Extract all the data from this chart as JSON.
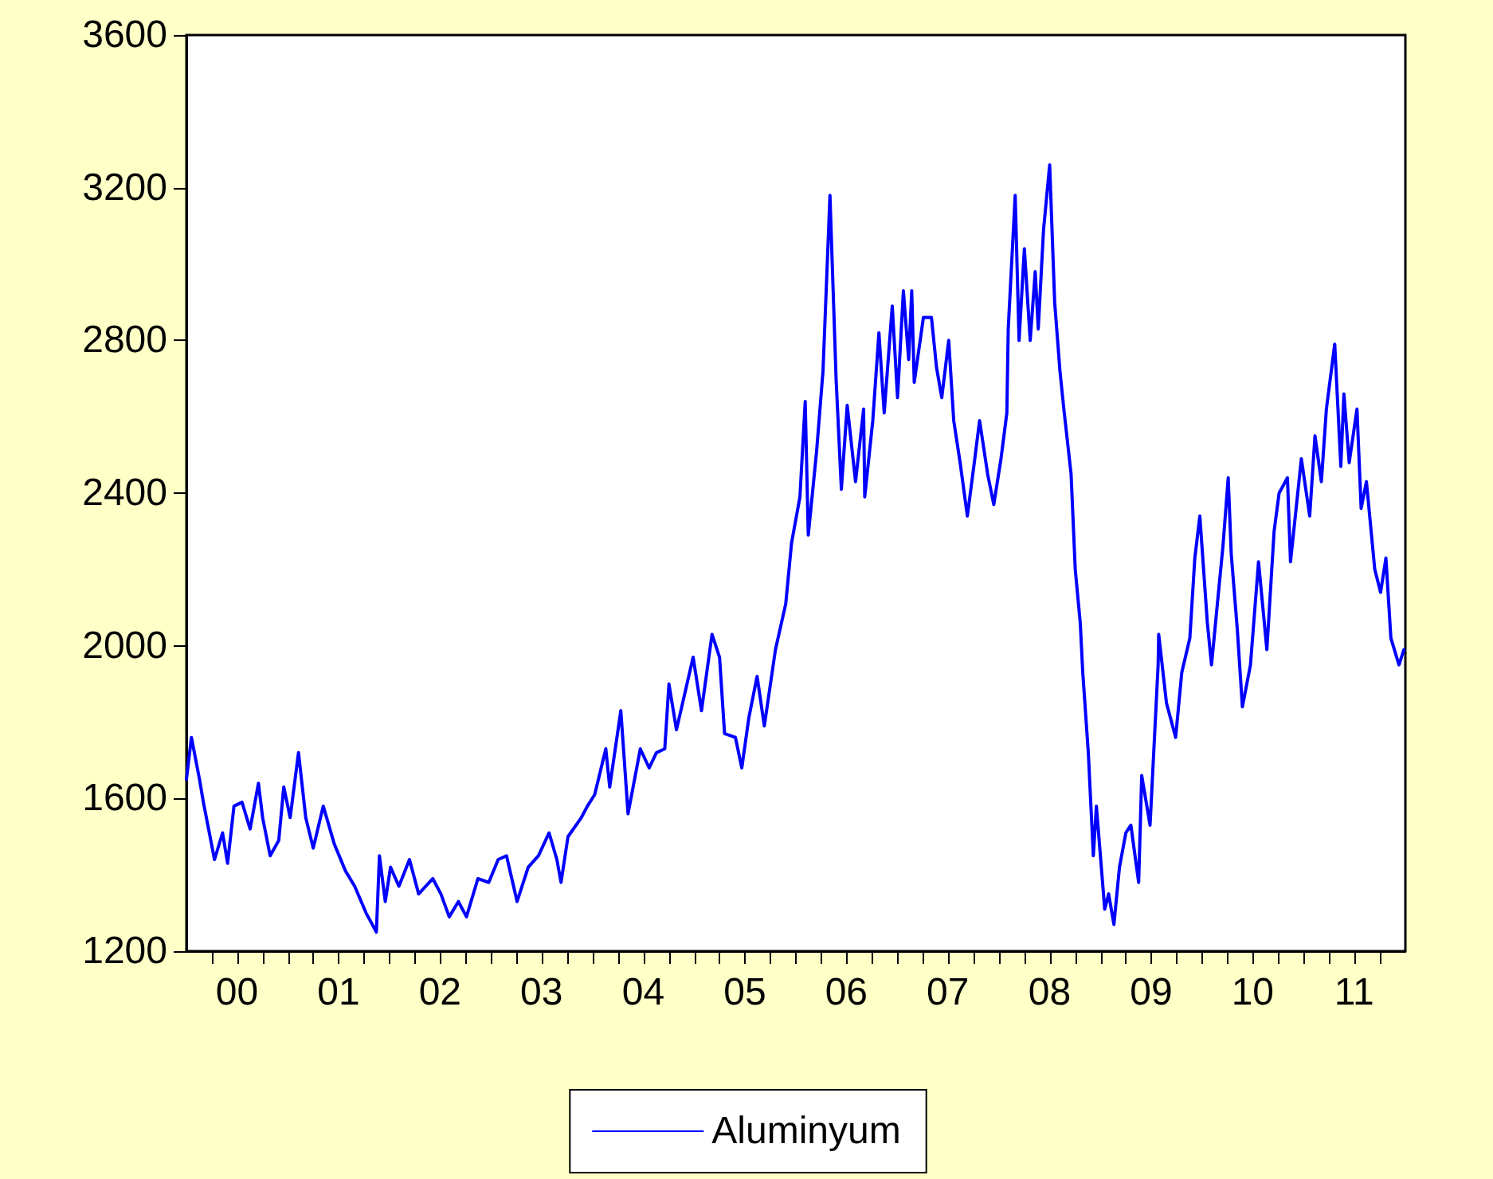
{
  "chart_data": {
    "type": "line",
    "legend": "bottom",
    "grid": false,
    "marker": "none",
    "line_style": "solid",
    "ylim": [
      1200,
      3600
    ],
    "yticks": [
      1200,
      1600,
      2000,
      2400,
      2800,
      3200,
      3600
    ],
    "xlim": [
      "2000-01-01",
      "2012-01-01"
    ],
    "xticks": [
      {
        "value": "2000-04-01",
        "label": null
      },
      {
        "value": "2000-07-01",
        "label": "00"
      },
      {
        "value": "2000-10-01",
        "label": null
      },
      {
        "value": "2001-01-01",
        "label": null
      },
      {
        "value": "2001-04-01",
        "label": null
      },
      {
        "value": "2001-07-01",
        "label": "01"
      },
      {
        "value": "2001-10-01",
        "label": null
      },
      {
        "value": "2002-01-01",
        "label": null
      },
      {
        "value": "2002-04-01",
        "label": null
      },
      {
        "value": "2002-07-01",
        "label": "02"
      },
      {
        "value": "2002-10-01",
        "label": null
      },
      {
        "value": "2003-01-01",
        "label": null
      },
      {
        "value": "2003-04-01",
        "label": null
      },
      {
        "value": "2003-07-01",
        "label": "03"
      },
      {
        "value": "2003-10-01",
        "label": null
      },
      {
        "value": "2004-01-01",
        "label": null
      },
      {
        "value": "2004-04-01",
        "label": null
      },
      {
        "value": "2004-07-01",
        "label": "04"
      },
      {
        "value": "2004-10-01",
        "label": null
      },
      {
        "value": "2005-01-01",
        "label": null
      },
      {
        "value": "2005-04-01",
        "label": null
      },
      {
        "value": "2005-07-01",
        "label": "05"
      },
      {
        "value": "2005-10-01",
        "label": null
      },
      {
        "value": "2006-01-01",
        "label": null
      },
      {
        "value": "2006-04-01",
        "label": null
      },
      {
        "value": "2006-07-01",
        "label": "06"
      },
      {
        "value": "2006-10-01",
        "label": null
      },
      {
        "value": "2007-01-01",
        "label": null
      },
      {
        "value": "2007-04-01",
        "label": null
      },
      {
        "value": "2007-07-01",
        "label": "07"
      },
      {
        "value": "2007-10-01",
        "label": null
      },
      {
        "value": "2008-01-01",
        "label": null
      },
      {
        "value": "2008-04-01",
        "label": null
      },
      {
        "value": "2008-07-01",
        "label": "08"
      },
      {
        "value": "2008-10-01",
        "label": null
      },
      {
        "value": "2009-01-01",
        "label": null
      },
      {
        "value": "2009-04-01",
        "label": null
      },
      {
        "value": "2009-07-01",
        "label": "09"
      },
      {
        "value": "2009-10-01",
        "label": null
      },
      {
        "value": "2010-01-01",
        "label": null
      },
      {
        "value": "2010-04-01",
        "label": null
      },
      {
        "value": "2010-07-01",
        "label": "10"
      },
      {
        "value": "2010-10-01",
        "label": null
      },
      {
        "value": "2011-01-01",
        "label": null
      },
      {
        "value": "2011-04-01",
        "label": null
      },
      {
        "value": "2011-07-01",
        "label": "11"
      },
      {
        "value": "2011-10-01",
        "label": null
      }
    ],
    "series": [
      {
        "name": "Aluminyum",
        "color": "#0000ff",
        "x": [
          "2000-01-01",
          "2000-01-19",
          "2000-02-17",
          "2000-03-02",
          "2000-04-11",
          "2000-05-10",
          "2000-05-28",
          "2000-06-20",
          "2000-07-19",
          "2000-08-17",
          "2000-09-16",
          "2000-10-01",
          "2000-10-28",
          "2000-11-28",
          "2000-12-16",
          "2001-01-08",
          "2001-02-07",
          "2001-03-05",
          "2001-04-01",
          "2001-05-07",
          "2001-06-16",
          "2001-07-26",
          "2001-08-28",
          "2001-10-08",
          "2001-11-14",
          "2001-11-25",
          "2001-12-16",
          "2002-01-04",
          "2002-02-03",
          "2002-03-13",
          "2002-04-15",
          "2002-06-05",
          "2002-07-04",
          "2002-08-03",
          "2002-09-05",
          "2002-10-04",
          "2002-11-14",
          "2002-12-23",
          "2003-01-26",
          "2003-02-25",
          "2003-04-04",
          "2003-05-14",
          "2003-06-20",
          "2003-07-28",
          "2003-08-25",
          "2003-09-09",
          "2003-10-04",
          "2003-11-21",
          "2003-12-13",
          "2004-01-08",
          "2004-02-17",
          "2004-03-02",
          "2004-04-11",
          "2004-05-07",
          "2004-06-20",
          "2004-07-22",
          "2004-08-17",
          "2004-09-16",
          "2004-10-01",
          "2004-10-28",
          "2004-12-27",
          "2005-01-26",
          "2005-03-05",
          "2005-04-01",
          "2005-04-19",
          "2005-05-28",
          "2005-06-20",
          "2005-07-15",
          "2005-08-14",
          "2005-09-09",
          "2005-10-19",
          "2005-11-25",
          "2005-12-16",
          "2006-01-15",
          "2006-02-03",
          "2006-02-14",
          "2006-03-16",
          "2006-04-08",
          "2006-05-03",
          "2006-05-25",
          "2006-06-13",
          "2006-07-04",
          "2006-08-03",
          "2006-09-01",
          "2006-09-05",
          "2006-10-04",
          "2006-10-26",
          "2006-11-14",
          "2006-12-13",
          "2007-01-01",
          "2007-01-22",
          "2007-02-10",
          "2007-02-21",
          "2007-03-02",
          "2007-04-04",
          "2007-05-03",
          "2007-05-21",
          "2007-06-09",
          "2007-07-04",
          "2007-07-22",
          "2007-08-14",
          "2007-09-09",
          "2007-10-04",
          "2007-10-23",
          "2007-11-21",
          "2007-12-13",
          "2008-01-08",
          "2008-01-29",
          "2008-02-03",
          "2008-02-28",
          "2008-03-13",
          "2008-04-01",
          "2008-04-22",
          "2008-05-10",
          "2008-05-21",
          "2008-06-09",
          "2008-07-01",
          "2008-07-19",
          "2008-08-07",
          "2008-08-21",
          "2008-09-16",
          "2008-10-01",
          "2008-10-19",
          "2008-10-28",
          "2008-11-17",
          "2008-12-05",
          "2008-12-16",
          "2009-01-15",
          "2009-01-29",
          "2009-02-17",
          "2009-03-09",
          "2009-04-01",
          "2009-04-19",
          "2009-05-17",
          "2009-05-28",
          "2009-06-27",
          "2009-07-26",
          "2009-07-28",
          "2009-08-25",
          "2009-09-27",
          "2009-10-19",
          "2009-11-17",
          "2009-12-05",
          "2009-12-23",
          "2010-01-19",
          "2010-02-03",
          "2010-02-28",
          "2010-03-16",
          "2010-04-04",
          "2010-04-15",
          "2010-05-07",
          "2010-05-25",
          "2010-06-23",
          "2010-07-22",
          "2010-08-21",
          "2010-09-16",
          "2010-10-04",
          "2010-11-03",
          "2010-11-14",
          "2010-12-23",
          "2011-01-22",
          "2011-02-10",
          "2011-03-05",
          "2011-03-23",
          "2011-04-22",
          "2011-05-14",
          "2011-05-25",
          "2011-06-13",
          "2011-07-11",
          "2011-07-26",
          "2011-08-14",
          "2011-09-13",
          "2011-10-04",
          "2011-10-23",
          "2011-11-10",
          "2011-12-09",
          "2011-12-27"
        ],
        "values": [
          1650,
          1760,
          1650,
          1590,
          1440,
          1510,
          1430,
          1580,
          1590,
          1520,
          1640,
          1550,
          1450,
          1490,
          1630,
          1550,
          1720,
          1550,
          1470,
          1580,
          1480,
          1410,
          1370,
          1300,
          1250,
          1450,
          1330,
          1420,
          1370,
          1440,
          1350,
          1390,
          1350,
          1290,
          1330,
          1290,
          1390,
          1380,
          1440,
          1450,
          1330,
          1420,
          1450,
          1510,
          1440,
          1380,
          1500,
          1550,
          1580,
          1610,
          1730,
          1630,
          1830,
          1560,
          1730,
          1680,
          1720,
          1730,
          1900,
          1780,
          1970,
          1830,
          2030,
          1970,
          1770,
          1760,
          1680,
          1810,
          1920,
          1790,
          1990,
          2110,
          2270,
          2390,
          2640,
          2290,
          2510,
          2720,
          3180,
          2700,
          2410,
          2630,
          2430,
          2620,
          2390,
          2590,
          2820,
          2610,
          2890,
          2650,
          2930,
          2750,
          2930,
          2690,
          2860,
          2860,
          2730,
          2650,
          2800,
          2590,
          2480,
          2340,
          2480,
          2590,
          2450,
          2370,
          2490,
          2610,
          2830,
          3180,
          2800,
          3040,
          2800,
          2980,
          2830,
          3090,
          3260,
          2900,
          2720,
          2620,
          2450,
          2200,
          2060,
          1930,
          1720,
          1450,
          1580,
          1310,
          1350,
          1270,
          1420,
          1510,
          1530,
          1380,
          1660,
          1530,
          1950,
          2030,
          1850,
          1760,
          1930,
          2020,
          2230,
          2340,
          2060,
          1950,
          2140,
          2260,
          2440,
          2240,
          2040,
          1840,
          1950,
          2220,
          1990,
          2300,
          2400,
          2440,
          2220,
          2490,
          2340,
          2550,
          2430,
          2620,
          2790,
          2470,
          2660,
          2480,
          2620,
          2360,
          2430,
          2200,
          2140,
          2230,
          2020,
          1950,
          1990
        ]
      }
    ]
  }
}
